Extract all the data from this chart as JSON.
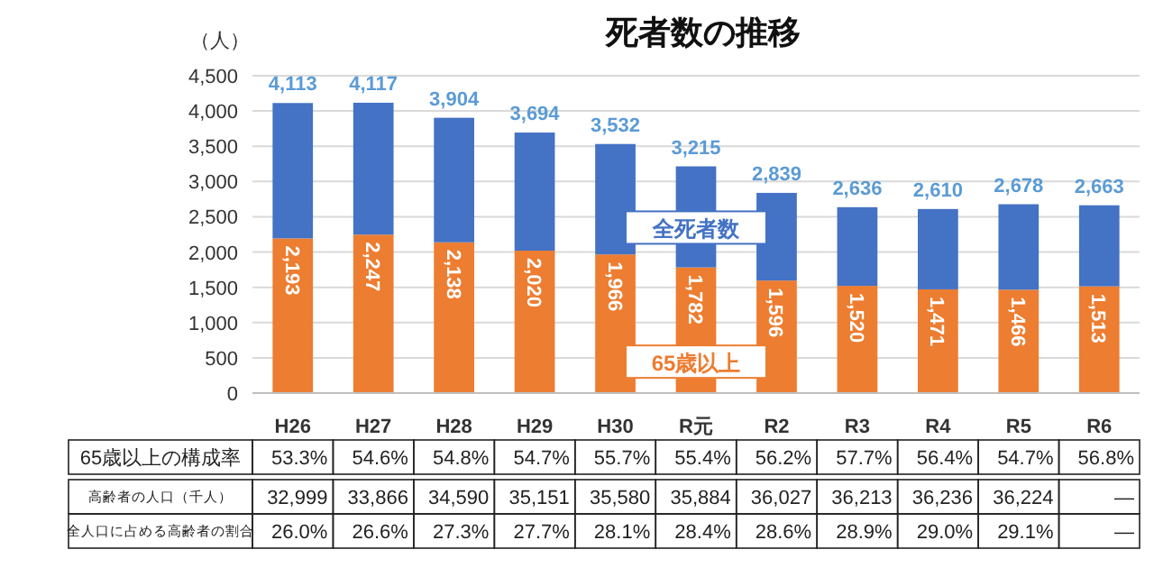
{
  "chart_data": {
    "type": "bar",
    "stacked": true,
    "title": "死者数の推移",
    "ylabel": "（人）",
    "categories": [
      "H26",
      "H27",
      "H28",
      "H29",
      "H30",
      "R元",
      "R2",
      "R3",
      "R4",
      "R5",
      "R6"
    ],
    "series": [
      {
        "name": "65歳以上",
        "color": "#ed7d31",
        "values": [
          2193,
          2247,
          2138,
          2020,
          1966,
          1782,
          1596,
          1520,
          1471,
          1466,
          1513
        ],
        "value_labels": [
          "2,193",
          "2,247",
          "2,138",
          "2,020",
          "1,966",
          "1,782",
          "1,596",
          "1,520",
          "1,471",
          "1,466",
          "1,513"
        ]
      },
      {
        "name": "全死者数",
        "color": "#4472c4",
        "values": [
          1920,
          1870,
          1766,
          1674,
          1566,
          1433,
          1243,
          1116,
          1139,
          1212,
          1150
        ]
      }
    ],
    "totals": [
      "4,113",
      "4,117",
      "3,904",
      "3,694",
      "3,532",
      "3,215",
      "2,839",
      "2,636",
      "2,610",
      "2,678",
      "2,663"
    ],
    "ylim": [
      0,
      4500
    ],
    "yticks": [
      0,
      500,
      {
        "value": 1000,
        "label": "1,000"
      },
      {
        "value": 1500,
        "label": "1,500"
      },
      {
        "value": 2000,
        "label": "2,000"
      },
      {
        "value": 2500,
        "label": "2,500"
      },
      {
        "value": 3000,
        "label": "3,000"
      },
      {
        "value": 3500,
        "label": "3,500"
      },
      {
        "value": 4000,
        "label": "4,000"
      },
      {
        "value": 4500,
        "label": "4,500"
      }
    ],
    "grid": "y",
    "annotations": [
      "65歳以上の構成率",
      "53.3%",
      "54.6%",
      "54.8%",
      "54.7%",
      "55.7%",
      "55.4%",
      "56.2%",
      "57.7%",
      "56.4%",
      "54.7%",
      "56.8%",
      "高齢者の人口（千人）",
      "32,999",
      "33,866",
      "34,590",
      "35,151",
      "35,580",
      "35,884",
      "36,027",
      "36,213",
      "36,236",
      "36,224",
      "—",
      "全人口に占める高齢者の割合",
      "26.0%",
      "26.6%",
      "27.3%",
      "27.7%",
      "28.1%",
      "28.4%",
      "28.6%",
      "28.9%",
      "29.0%",
      "29.1%",
      "—"
    ]
  }
}
